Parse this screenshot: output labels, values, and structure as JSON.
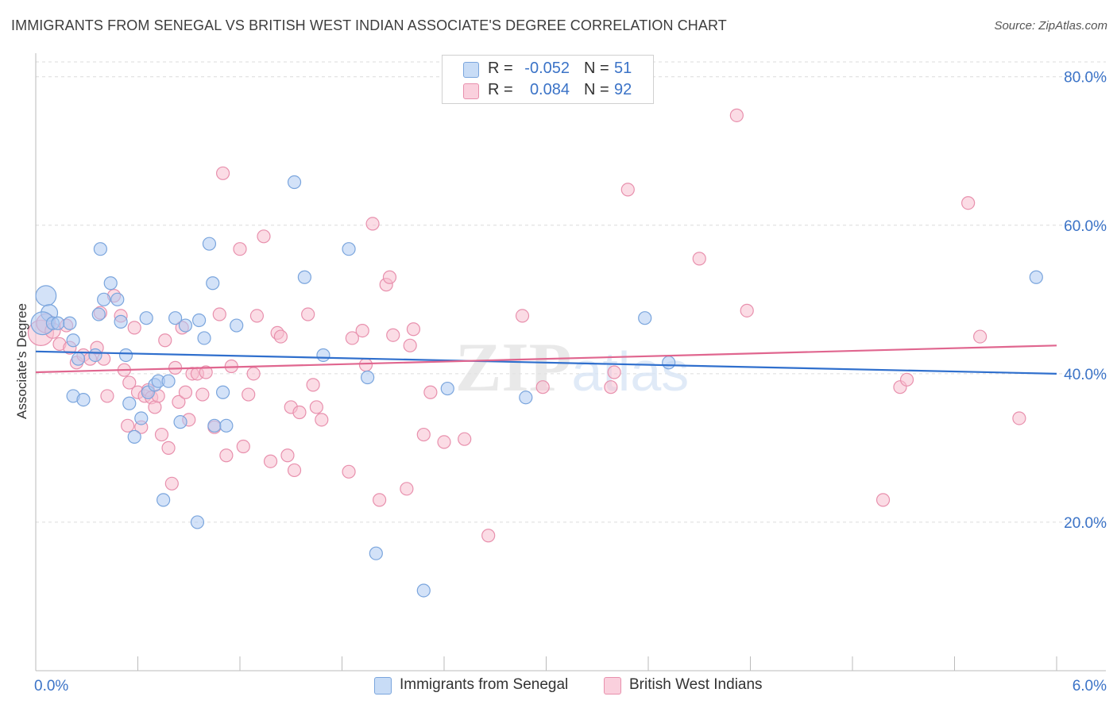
{
  "title": "IMMIGRANTS FROM SENEGAL VS BRITISH WEST INDIAN ASSOCIATE'S DEGREE CORRELATION CHART",
  "source": "Source: ZipAtlas.com",
  "watermark": "ZIPatlas",
  "colors": {
    "blue_fill": "#aecbf2",
    "blue_stroke": "#7aa5dd",
    "blue_line": "#2f6fcd",
    "pink_fill": "#f7bfd0",
    "pink_stroke": "#e890ad",
    "pink_line": "#e0668f",
    "tick_text": "#3b73c7",
    "grid": "#dcdcdc"
  },
  "legend": {
    "rows": [
      {
        "r_label": "R =",
        "r_value": "-0.052",
        "n_label": "N =",
        "n_value": "51"
      },
      {
        "r_label": "R =",
        "r_value": "0.084",
        "n_label": "N =",
        "n_value": "92"
      }
    ]
  },
  "bottom_legend": [
    "Immigrants from Senegal",
    "British West Indians"
  ],
  "chart_data": {
    "type": "scatter",
    "title": "IMMIGRANTS FROM SENEGAL VS BRITISH WEST INDIAN ASSOCIATE'S DEGREE CORRELATION CHART",
    "xlabel": "",
    "ylabel": "Associate's Degree",
    "xlim": [
      0,
      6
    ],
    "ylim": [
      0,
      82
    ],
    "x_tick_labels": [
      "0.0%",
      "6.0%"
    ],
    "y_ticks": [
      20,
      40,
      60,
      80
    ],
    "y_tick_labels": [
      "20.0%",
      "40.0%",
      "60.0%",
      "80.0%"
    ],
    "grid": true,
    "legend_position": "top-center",
    "series": [
      {
        "name": "Immigrants from Senegal",
        "color": "#aecbf2",
        "trend": {
          "x": [
            0,
            6
          ],
          "y": [
            43.0,
            40.0
          ]
        },
        "points": [
          [
            0.06,
            50.5,
            1.6
          ],
          [
            0.08,
            48.2,
            1.3
          ],
          [
            0.04,
            46.8,
            1.8
          ],
          [
            0.1,
            46.8,
            1
          ],
          [
            0.13,
            46.8,
            1
          ],
          [
            0.2,
            46.8,
            1
          ],
          [
            0.22,
            44.5,
            1
          ],
          [
            0.25,
            42.0,
            1
          ],
          [
            0.35,
            42.5,
            1
          ],
          [
            0.22,
            37.0,
            1
          ],
          [
            0.28,
            36.5,
            1
          ],
          [
            0.37,
            48.0,
            1
          ],
          [
            0.38,
            56.8,
            1
          ],
          [
            0.4,
            50.0,
            1
          ],
          [
            0.44,
            52.2,
            1
          ],
          [
            0.48,
            50.0,
            1
          ],
          [
            0.5,
            47.0,
            1
          ],
          [
            0.53,
            42.5,
            1
          ],
          [
            0.55,
            36.0,
            1
          ],
          [
            0.58,
            31.5,
            1
          ],
          [
            0.62,
            34.0,
            1
          ],
          [
            0.65,
            47.5,
            1
          ],
          [
            0.66,
            37.5,
            1
          ],
          [
            0.7,
            38.5,
            1
          ],
          [
            0.72,
            39.0,
            1
          ],
          [
            0.75,
            23.0,
            1
          ],
          [
            0.78,
            39.0,
            1
          ],
          [
            0.82,
            47.5,
            1
          ],
          [
            0.85,
            33.5,
            1
          ],
          [
            0.88,
            46.5,
            1
          ],
          [
            0.95,
            20.0,
            1
          ],
          [
            0.96,
            47.2,
            1
          ],
          [
            0.99,
            44.8,
            1
          ],
          [
            1.02,
            57.5,
            1
          ],
          [
            1.04,
            52.2,
            1
          ],
          [
            1.05,
            33.0,
            1
          ],
          [
            1.1,
            37.5,
            1
          ],
          [
            1.12,
            33.0,
            1
          ],
          [
            1.18,
            46.5,
            1
          ],
          [
            1.52,
            65.8,
            1
          ],
          [
            1.58,
            53.0,
            1
          ],
          [
            1.69,
            42.5,
            1
          ],
          [
            1.84,
            56.8,
            1
          ],
          [
            1.95,
            39.5,
            1
          ],
          [
            2.0,
            15.8,
            1
          ],
          [
            2.28,
            10.8,
            1
          ],
          [
            2.42,
            38.0,
            1
          ],
          [
            2.88,
            36.8,
            1
          ],
          [
            3.58,
            47.5,
            1
          ],
          [
            3.72,
            41.5,
            1
          ],
          [
            5.88,
            53.0,
            1
          ]
        ]
      },
      {
        "name": "British West Indians",
        "color": "#f7bfd0",
        "trend": {
          "x": [
            0,
            6
          ],
          "y": [
            40.2,
            43.8
          ]
        },
        "points": [
          [
            0.03,
            45.5,
            2.0
          ],
          [
            0.06,
            46.8,
            1.5
          ],
          [
            0.1,
            45.8,
            1.2
          ],
          [
            0.14,
            44.0,
            1
          ],
          [
            0.18,
            46.5,
            1
          ],
          [
            0.2,
            43.5,
            1
          ],
          [
            0.24,
            41.5,
            1
          ],
          [
            0.28,
            42.5,
            1
          ],
          [
            0.32,
            42.0,
            1
          ],
          [
            0.36,
            43.5,
            1
          ],
          [
            0.38,
            48.2,
            1
          ],
          [
            0.4,
            42.0,
            1
          ],
          [
            0.42,
            37.0,
            1
          ],
          [
            0.46,
            50.5,
            1
          ],
          [
            0.5,
            47.8,
            1
          ],
          [
            0.52,
            40.5,
            1
          ],
          [
            0.54,
            33.0,
            1
          ],
          [
            0.55,
            38.8,
            1
          ],
          [
            0.58,
            46.2,
            1
          ],
          [
            0.6,
            37.5,
            1
          ],
          [
            0.62,
            32.8,
            1
          ],
          [
            0.64,
            37.0,
            1
          ],
          [
            0.66,
            37.8,
            1
          ],
          [
            0.68,
            36.8,
            1
          ],
          [
            0.7,
            35.5,
            1
          ],
          [
            0.72,
            37.0,
            1
          ],
          [
            0.74,
            31.8,
            1
          ],
          [
            0.76,
            44.5,
            1
          ],
          [
            0.78,
            30.0,
            1
          ],
          [
            0.8,
            25.2,
            1
          ],
          [
            0.82,
            40.8,
            1
          ],
          [
            0.84,
            36.2,
            1
          ],
          [
            0.86,
            46.2,
            1
          ],
          [
            0.88,
            37.5,
            1
          ],
          [
            0.9,
            33.8,
            1
          ],
          [
            0.92,
            40.0,
            1
          ],
          [
            0.95,
            40.0,
            1
          ],
          [
            0.98,
            37.2,
            1
          ],
          [
            1.0,
            40.2,
            1
          ],
          [
            1.05,
            32.8,
            1
          ],
          [
            1.08,
            48.0,
            1
          ],
          [
            1.1,
            67.0,
            1
          ],
          [
            1.12,
            29.0,
            1
          ],
          [
            1.15,
            41.0,
            1
          ],
          [
            1.2,
            56.8,
            1
          ],
          [
            1.22,
            30.2,
            1
          ],
          [
            1.25,
            37.2,
            1
          ],
          [
            1.28,
            40.0,
            1
          ],
          [
            1.3,
            47.8,
            1
          ],
          [
            1.34,
            58.5,
            1
          ],
          [
            1.38,
            28.2,
            1
          ],
          [
            1.42,
            45.5,
            1
          ],
          [
            1.44,
            45.0,
            1
          ],
          [
            1.48,
            29.0,
            1
          ],
          [
            1.5,
            35.5,
            1
          ],
          [
            1.52,
            27.0,
            1
          ],
          [
            1.55,
            34.8,
            1
          ],
          [
            1.6,
            48.0,
            1
          ],
          [
            1.63,
            38.5,
            1
          ],
          [
            1.65,
            35.5,
            1
          ],
          [
            1.68,
            33.8,
            1
          ],
          [
            1.84,
            26.8,
            1
          ],
          [
            1.86,
            44.8,
            1
          ],
          [
            1.92,
            45.8,
            1
          ],
          [
            1.94,
            41.2,
            1
          ],
          [
            1.98,
            60.2,
            1
          ],
          [
            2.02,
            23.0,
            1
          ],
          [
            2.06,
            52.0,
            1
          ],
          [
            2.08,
            53.0,
            1
          ],
          [
            2.1,
            45.2,
            1
          ],
          [
            2.18,
            24.5,
            1
          ],
          [
            2.2,
            43.8,
            1
          ],
          [
            2.22,
            46.0,
            1
          ],
          [
            2.28,
            31.8,
            1
          ],
          [
            2.32,
            37.5,
            1
          ],
          [
            2.4,
            30.8,
            1
          ],
          [
            2.52,
            31.2,
            1
          ],
          [
            2.66,
            18.2,
            1
          ],
          [
            2.86,
            47.8,
            1
          ],
          [
            2.98,
            38.2,
            1
          ],
          [
            3.38,
            38.2,
            1
          ],
          [
            3.4,
            40.2,
            1
          ],
          [
            3.48,
            64.8,
            1
          ],
          [
            3.9,
            55.5,
            1
          ],
          [
            4.12,
            74.8,
            1
          ],
          [
            4.18,
            48.5,
            1
          ],
          [
            4.98,
            23.0,
            1
          ],
          [
            5.08,
            38.2,
            1
          ],
          [
            5.12,
            39.2,
            1
          ],
          [
            5.48,
            63.0,
            1
          ],
          [
            5.55,
            45.0,
            1
          ],
          [
            5.78,
            34.0,
            1
          ]
        ]
      }
    ]
  }
}
